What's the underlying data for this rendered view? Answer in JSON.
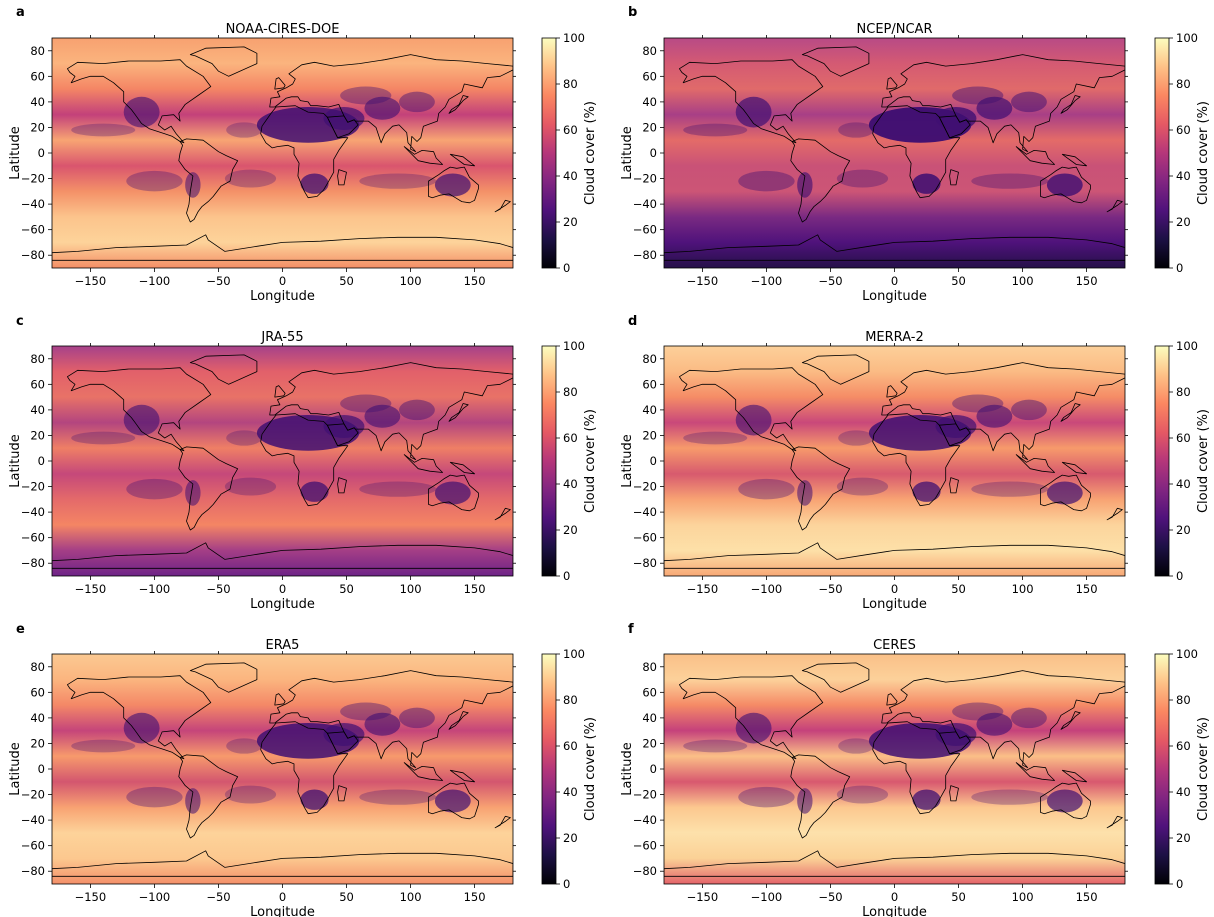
{
  "colorbar": {
    "label": "Cloud cover (%)",
    "ticks": [
      "0",
      "20",
      "40",
      "60",
      "80",
      "100"
    ],
    "colormap": "magma",
    "stops": [
      "#000004",
      "#1c1044",
      "#4f127b",
      "#812581",
      "#b5367a",
      "#e55964",
      "#fb8761",
      "#fec287",
      "#fcfdbf"
    ]
  },
  "axes": {
    "xlabel": "Longitude",
    "ylabel": "Latitude",
    "xticks": [
      "−150",
      "−100",
      "−50",
      "0",
      "50",
      "100",
      "150"
    ],
    "yticks": [
      "80",
      "60",
      "40",
      "20",
      "0",
      "−20",
      "−40",
      "−60",
      "−80"
    ]
  },
  "chart_data": [
    {
      "type": "heatmap",
      "panel_letter": "a",
      "title": "NOAA-CIRES-DOE",
      "xlabel": "Longitude",
      "ylabel": "Latitude",
      "xlim": [
        -180,
        180
      ],
      "ylim": [
        -90,
        90
      ],
      "colorbar_range": [
        0,
        100
      ],
      "colorbar_label": "Cloud cover (%)",
      "variant": 0
    },
    {
      "type": "heatmap",
      "panel_letter": "b",
      "title": "NCEP/NCAR",
      "xlabel": "Longitude",
      "ylabel": "Latitude",
      "xlim": [
        -180,
        180
      ],
      "ylim": [
        -90,
        90
      ],
      "colorbar_range": [
        0,
        100
      ],
      "colorbar_label": "Cloud cover (%)",
      "variant": 1
    },
    {
      "type": "heatmap",
      "panel_letter": "c",
      "title": "JRA-55",
      "xlabel": "Longitude",
      "ylabel": "Latitude",
      "xlim": [
        -180,
        180
      ],
      "ylim": [
        -90,
        90
      ],
      "colorbar_range": [
        0,
        100
      ],
      "colorbar_label": "Cloud cover (%)",
      "variant": 2
    },
    {
      "type": "heatmap",
      "panel_letter": "d",
      "title": "MERRA-2",
      "xlabel": "Longitude",
      "ylabel": "Latitude",
      "xlim": [
        -180,
        180
      ],
      "ylim": [
        -90,
        90
      ],
      "colorbar_range": [
        0,
        100
      ],
      "colorbar_label": "Cloud cover (%)",
      "variant": 3
    },
    {
      "type": "heatmap",
      "panel_letter": "e",
      "title": "ERA5",
      "xlabel": "Longitude",
      "ylabel": "Latitude",
      "xlim": [
        -180,
        180
      ],
      "ylim": [
        -90,
        90
      ],
      "colorbar_range": [
        0,
        100
      ],
      "colorbar_label": "Cloud cover (%)",
      "variant": 4
    },
    {
      "type": "heatmap",
      "panel_letter": "f",
      "title": "CERES",
      "xlabel": "Longitude",
      "ylabel": "Latitude",
      "xlim": [
        -180,
        180
      ],
      "ylim": [
        -90,
        90
      ],
      "colorbar_range": [
        0,
        100
      ],
      "colorbar_label": "Cloud cover (%)",
      "variant": 5
    }
  ]
}
